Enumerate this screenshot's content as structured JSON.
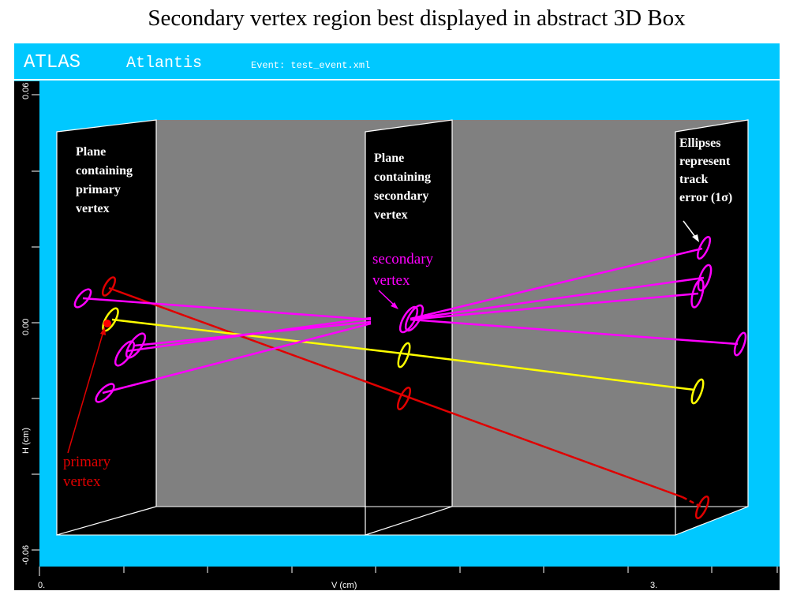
{
  "slide": {
    "title": "Secondary vertex region best displayed in abstract 3D Box"
  },
  "header": {
    "experiment": "ATLAS",
    "program": "Atlantis",
    "event": "Event: test_event.xml"
  },
  "axes": {
    "y": {
      "ticks": [
        "0.06",
        "0.00",
        "-0.06"
      ],
      "label": "H (cm)"
    },
    "x": {
      "ticks": [
        "0.",
        "3."
      ],
      "label": "V (cm)"
    }
  },
  "annotations": {
    "primary_plane": [
      "Plane",
      "containing",
      "primary",
      "vertex"
    ],
    "secondary_plane": [
      "Plane",
      "containing",
      "secondary",
      "vertex"
    ],
    "ellipses": [
      "Ellipses",
      "represent",
      "track",
      "error (1σ)"
    ],
    "secondary_vertex": [
      "secondary",
      "vertex"
    ],
    "primary_vertex": [
      "primary",
      "vertex"
    ]
  }
}
